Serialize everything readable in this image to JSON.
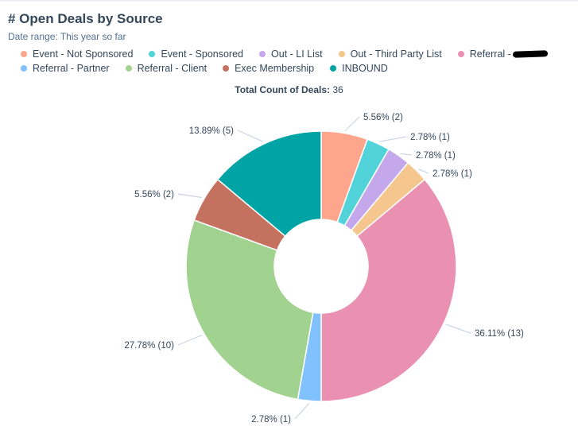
{
  "title": "# Open Deals by Source",
  "date_range": "Date range:  This year so far",
  "total_label": "Total Count of Deals:",
  "total_value": "36",
  "chart_data": {
    "type": "pie",
    "donut": true,
    "categories": [
      "Event - Not Sponsored",
      "Event - Sponsored",
      "Out - LI List",
      "Out - Third Party List",
      "Referral -",
      "Referral - Partner",
      "Referral - Client",
      "Exec Membership",
      "INBOUND"
    ],
    "values": [
      2,
      1,
      1,
      1,
      13,
      1,
      10,
      2,
      5
    ],
    "labels": [
      "5.56% (2)",
      "2.78% (1)",
      "2.78% (1)",
      "2.78% (1)",
      "36.11% (13)",
      "2.78% (1)",
      "27.78% (10)",
      "5.56% (2)",
      "13.89% (5)"
    ],
    "colors": [
      "#fea58e",
      "#51d3d9",
      "#c5a8eb",
      "#f5c78e",
      "#ea90b1",
      "#81c1fd",
      "#a2d28f",
      "#c47160",
      "#00a4a5"
    ],
    "legend_placement": "top-left",
    "redacted": [
      4
    ]
  }
}
